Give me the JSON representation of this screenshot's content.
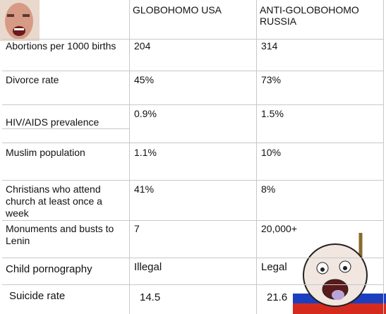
{
  "table": {
    "columns": [
      "GLOBOHOMO USA",
      "ANTI-GOLOBOHOMO RUSSIA"
    ],
    "rows": [
      [
        "Abortions per 1000 births",
        "204",
        "314"
      ],
      [
        "Divorce rate",
        "45%",
        "73%"
      ],
      [
        "HIV/AIDS prevalence",
        "0.9%",
        "1.5%"
      ],
      [
        "Muslim population",
        "1.1%",
        "10%"
      ],
      [
        "Christians who attend church at least once a week",
        "41%",
        "8%"
      ],
      [
        "Monuments and busts to Lenin",
        "7",
        "20,000+"
      ],
      [
        "Child pornography",
        "Illegal",
        "Legal"
      ],
      [
        "Suicide rate",
        "14.5",
        "21.6"
      ]
    ]
  }
}
